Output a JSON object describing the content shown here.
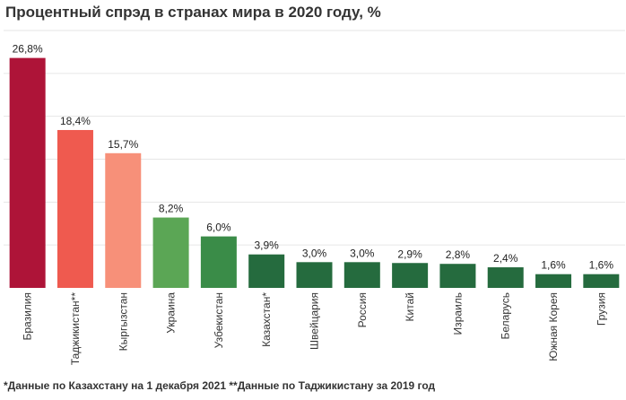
{
  "chart_data": {
    "type": "bar",
    "title": "Процентный спрэд в странах мира в 2020 году, %",
    "categories": [
      "Бразилия",
      "Таджикистан**",
      "Кыргызстан",
      "Украина",
      "Узбекистан",
      "Казахстан*",
      "Швейцария",
      "Россия",
      "Китай",
      "Израиль",
      "Беларусь",
      "Южная Корея",
      "Грузия"
    ],
    "values": [
      26.8,
      18.4,
      15.7,
      8.2,
      6.0,
      3.9,
      3.0,
      3.0,
      2.9,
      2.8,
      2.4,
      1.6,
      1.6
    ],
    "value_labels": [
      "26,8%",
      "18,4%",
      "15,7%",
      "8,2%",
      "6,0%",
      "3,9%",
      "3,0%",
      "3,0%",
      "2,9%",
      "2,8%",
      "2,4%",
      "1,6%",
      "1,6%"
    ],
    "colors": [
      "#ae1438",
      "#ef5a4f",
      "#f79079",
      "#5ba655",
      "#3a8c48",
      "#256b3e",
      "#256b3e",
      "#256b3e",
      "#256b3e",
      "#256b3e",
      "#256b3e",
      "#256b3e",
      "#256b3e"
    ],
    "ylim": [
      0,
      30
    ],
    "grid": true,
    "xlabel": "",
    "ylabel": ""
  },
  "footnote": "*Данные по Казахстану на 1 декабря 2021 **Данные по Таджикистану за 2019 год"
}
